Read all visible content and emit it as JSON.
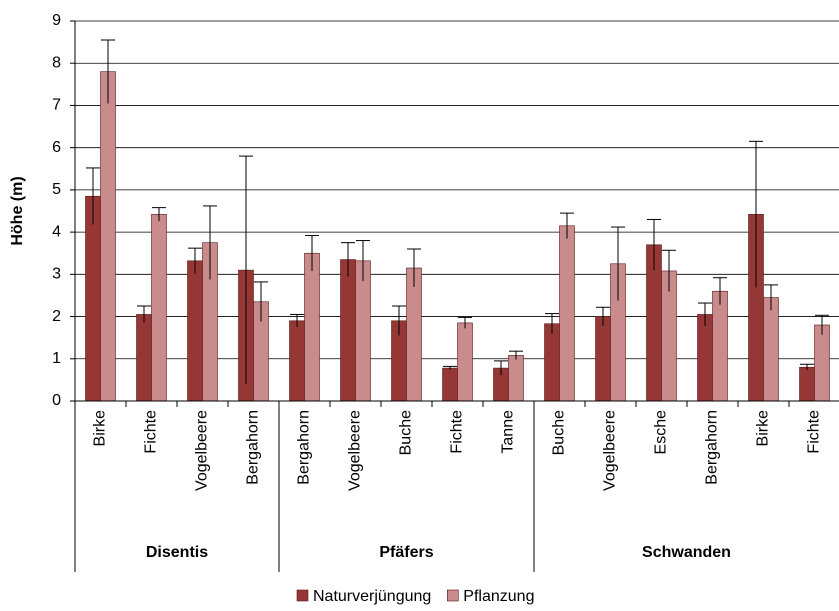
{
  "chart_data": {
    "type": "bar",
    "y_label": "Höhe (m)",
    "groups": [
      {
        "name": "Disentis",
        "categories": [
          "Birke",
          "Fichte",
          "Vogelbeere",
          "Bergahorn"
        ]
      },
      {
        "name": "Pfäfers",
        "categories": [
          "Bergahorn",
          "Vogelbeere",
          "Buche",
          "Fichte",
          "Tanne"
        ]
      },
      {
        "name": "Schwanden",
        "categories": [
          "Buche",
          "Vogelbeere",
          "Esche",
          "Bergahorn",
          "Birke",
          "Fichte"
        ]
      }
    ],
    "series": [
      {
        "name": "Naturverjüngung",
        "color": "#953735",
        "values": [
          4.85,
          2.05,
          3.32,
          3.1,
          1.9,
          3.35,
          1.9,
          0.78,
          0.78,
          1.83,
          2.0,
          3.7,
          2.05,
          4.42,
          0.8
        ],
        "errors": [
          0.67,
          0.2,
          0.3,
          2.7,
          0.15,
          0.4,
          0.35,
          0.04,
          0.17,
          0.24,
          0.22,
          0.6,
          0.27,
          1.73,
          0.07
        ]
      },
      {
        "name": "Pflanzung",
        "color": "#c98b8c",
        "values": [
          7.8,
          4.42,
          3.75,
          2.35,
          3.5,
          3.32,
          3.15,
          1.85,
          1.08,
          4.15,
          3.25,
          3.08,
          2.6,
          2.45,
          1.8
        ],
        "errors": [
          0.75,
          0.16,
          0.87,
          0.47,
          0.42,
          0.48,
          0.45,
          0.13,
          0.1,
          0.3,
          0.87,
          0.49,
          0.32,
          0.3,
          0.23
        ]
      }
    ],
    "ylim": [
      0,
      9
    ],
    "yticks": [
      0,
      1,
      2,
      3,
      4,
      5,
      6,
      7,
      8,
      9
    ],
    "grid": true
  }
}
